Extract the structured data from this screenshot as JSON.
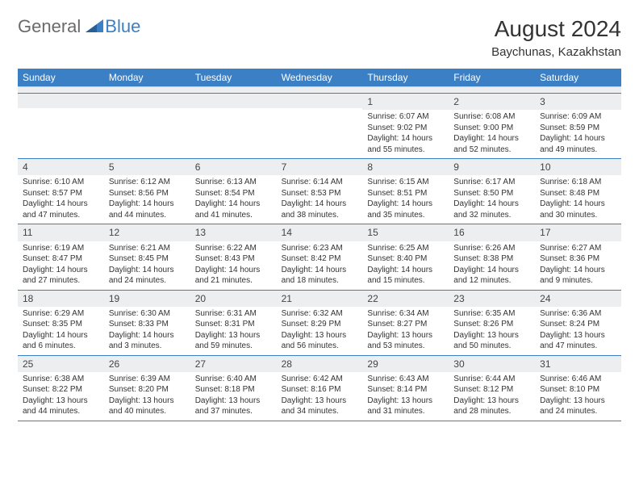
{
  "brand": {
    "general": "General",
    "blue": "Blue"
  },
  "title": "August 2024",
  "location": "Baychunas, Kazakhstan",
  "colors": {
    "header_bg": "#3b7fc4",
    "header_text": "#ffffff",
    "daynum_bg": "#eceeef",
    "border": "#3b7fc4",
    "text": "#333333"
  },
  "fonts": {
    "title_size": 28,
    "location_size": 15,
    "header_size": 12,
    "daynum_size": 12,
    "body_size": 10
  },
  "day_headers": [
    "Sunday",
    "Monday",
    "Tuesday",
    "Wednesday",
    "Thursday",
    "Friday",
    "Saturday"
  ],
  "weeks": [
    [
      {
        "n": "",
        "lines": []
      },
      {
        "n": "",
        "lines": []
      },
      {
        "n": "",
        "lines": []
      },
      {
        "n": "",
        "lines": []
      },
      {
        "n": "1",
        "lines": [
          "Sunrise: 6:07 AM",
          "Sunset: 9:02 PM",
          "Daylight: 14 hours and 55 minutes."
        ]
      },
      {
        "n": "2",
        "lines": [
          "Sunrise: 6:08 AM",
          "Sunset: 9:00 PM",
          "Daylight: 14 hours and 52 minutes."
        ]
      },
      {
        "n": "3",
        "lines": [
          "Sunrise: 6:09 AM",
          "Sunset: 8:59 PM",
          "Daylight: 14 hours and 49 minutes."
        ]
      }
    ],
    [
      {
        "n": "4",
        "lines": [
          "Sunrise: 6:10 AM",
          "Sunset: 8:57 PM",
          "Daylight: 14 hours and 47 minutes."
        ]
      },
      {
        "n": "5",
        "lines": [
          "Sunrise: 6:12 AM",
          "Sunset: 8:56 PM",
          "Daylight: 14 hours and 44 minutes."
        ]
      },
      {
        "n": "6",
        "lines": [
          "Sunrise: 6:13 AM",
          "Sunset: 8:54 PM",
          "Daylight: 14 hours and 41 minutes."
        ]
      },
      {
        "n": "7",
        "lines": [
          "Sunrise: 6:14 AM",
          "Sunset: 8:53 PM",
          "Daylight: 14 hours and 38 minutes."
        ]
      },
      {
        "n": "8",
        "lines": [
          "Sunrise: 6:15 AM",
          "Sunset: 8:51 PM",
          "Daylight: 14 hours and 35 minutes."
        ]
      },
      {
        "n": "9",
        "lines": [
          "Sunrise: 6:17 AM",
          "Sunset: 8:50 PM",
          "Daylight: 14 hours and 32 minutes."
        ]
      },
      {
        "n": "10",
        "lines": [
          "Sunrise: 6:18 AM",
          "Sunset: 8:48 PM",
          "Daylight: 14 hours and 30 minutes."
        ]
      }
    ],
    [
      {
        "n": "11",
        "lines": [
          "Sunrise: 6:19 AM",
          "Sunset: 8:47 PM",
          "Daylight: 14 hours and 27 minutes."
        ]
      },
      {
        "n": "12",
        "lines": [
          "Sunrise: 6:21 AM",
          "Sunset: 8:45 PM",
          "Daylight: 14 hours and 24 minutes."
        ]
      },
      {
        "n": "13",
        "lines": [
          "Sunrise: 6:22 AM",
          "Sunset: 8:43 PM",
          "Daylight: 14 hours and 21 minutes."
        ]
      },
      {
        "n": "14",
        "lines": [
          "Sunrise: 6:23 AM",
          "Sunset: 8:42 PM",
          "Daylight: 14 hours and 18 minutes."
        ]
      },
      {
        "n": "15",
        "lines": [
          "Sunrise: 6:25 AM",
          "Sunset: 8:40 PM",
          "Daylight: 14 hours and 15 minutes."
        ]
      },
      {
        "n": "16",
        "lines": [
          "Sunrise: 6:26 AM",
          "Sunset: 8:38 PM",
          "Daylight: 14 hours and 12 minutes."
        ]
      },
      {
        "n": "17",
        "lines": [
          "Sunrise: 6:27 AM",
          "Sunset: 8:36 PM",
          "Daylight: 14 hours and 9 minutes."
        ]
      }
    ],
    [
      {
        "n": "18",
        "lines": [
          "Sunrise: 6:29 AM",
          "Sunset: 8:35 PM",
          "Daylight: 14 hours and 6 minutes."
        ]
      },
      {
        "n": "19",
        "lines": [
          "Sunrise: 6:30 AM",
          "Sunset: 8:33 PM",
          "Daylight: 14 hours and 3 minutes."
        ]
      },
      {
        "n": "20",
        "lines": [
          "Sunrise: 6:31 AM",
          "Sunset: 8:31 PM",
          "Daylight: 13 hours and 59 minutes."
        ]
      },
      {
        "n": "21",
        "lines": [
          "Sunrise: 6:32 AM",
          "Sunset: 8:29 PM",
          "Daylight: 13 hours and 56 minutes."
        ]
      },
      {
        "n": "22",
        "lines": [
          "Sunrise: 6:34 AM",
          "Sunset: 8:27 PM",
          "Daylight: 13 hours and 53 minutes."
        ]
      },
      {
        "n": "23",
        "lines": [
          "Sunrise: 6:35 AM",
          "Sunset: 8:26 PM",
          "Daylight: 13 hours and 50 minutes."
        ]
      },
      {
        "n": "24",
        "lines": [
          "Sunrise: 6:36 AM",
          "Sunset: 8:24 PM",
          "Daylight: 13 hours and 47 minutes."
        ]
      }
    ],
    [
      {
        "n": "25",
        "lines": [
          "Sunrise: 6:38 AM",
          "Sunset: 8:22 PM",
          "Daylight: 13 hours and 44 minutes."
        ]
      },
      {
        "n": "26",
        "lines": [
          "Sunrise: 6:39 AM",
          "Sunset: 8:20 PM",
          "Daylight: 13 hours and 40 minutes."
        ]
      },
      {
        "n": "27",
        "lines": [
          "Sunrise: 6:40 AM",
          "Sunset: 8:18 PM",
          "Daylight: 13 hours and 37 minutes."
        ]
      },
      {
        "n": "28",
        "lines": [
          "Sunrise: 6:42 AM",
          "Sunset: 8:16 PM",
          "Daylight: 13 hours and 34 minutes."
        ]
      },
      {
        "n": "29",
        "lines": [
          "Sunrise: 6:43 AM",
          "Sunset: 8:14 PM",
          "Daylight: 13 hours and 31 minutes."
        ]
      },
      {
        "n": "30",
        "lines": [
          "Sunrise: 6:44 AM",
          "Sunset: 8:12 PM",
          "Daylight: 13 hours and 28 minutes."
        ]
      },
      {
        "n": "31",
        "lines": [
          "Sunrise: 6:46 AM",
          "Sunset: 8:10 PM",
          "Daylight: 13 hours and 24 minutes."
        ]
      }
    ]
  ]
}
